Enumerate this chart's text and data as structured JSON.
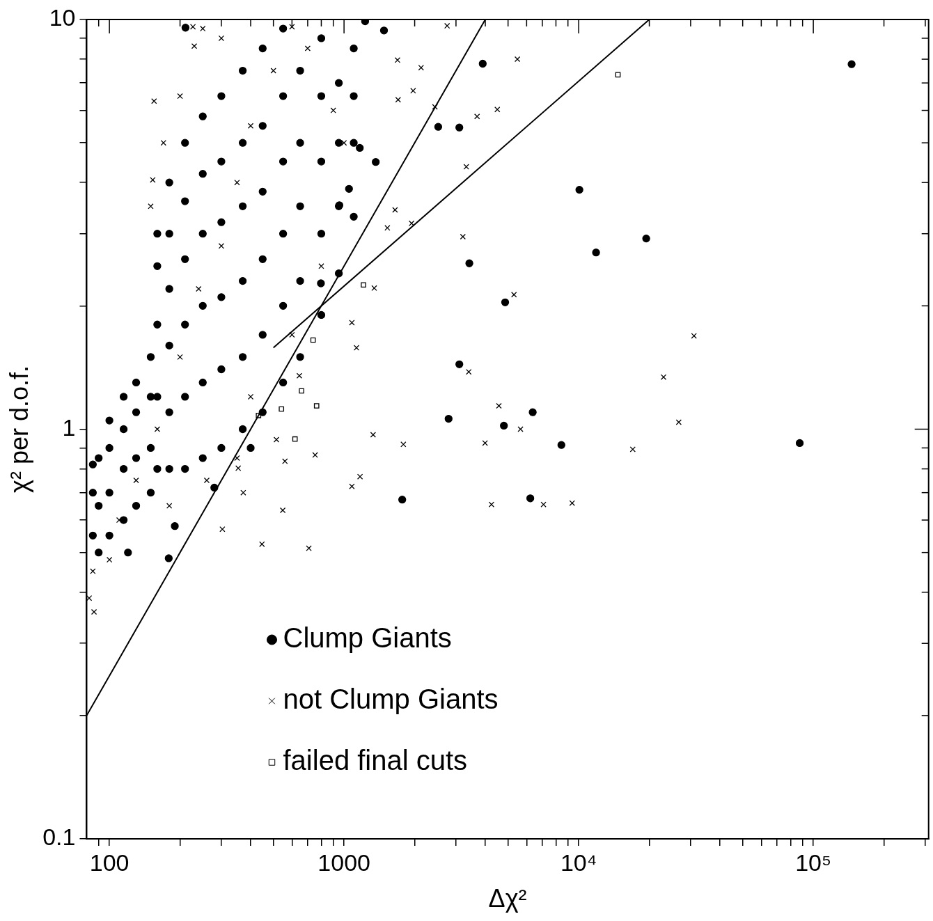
{
  "chart_data": {
    "type": "scatter",
    "xlabel": "Δχ²",
    "ylabel": "χ² per d.o.f.",
    "log": "xy",
    "grid": false,
    "legend": "bottom left",
    "xlim": [
      80,
      310000
    ],
    "ylim": [
      0.1,
      10
    ],
    "xticks": [
      {
        "value": 90,
        "label": null
      },
      100,
      {
        "value": 200,
        "label": null
      },
      {
        "value": 300,
        "label": null
      },
      {
        "value": 400,
        "label": null
      },
      {
        "value": 500,
        "label": null
      },
      {
        "value": 600,
        "label": null
      },
      {
        "value": 700,
        "label": null
      },
      {
        "value": 800,
        "label": null
      },
      {
        "value": 900,
        "label": null
      },
      1000,
      {
        "value": 2000,
        "label": null
      },
      {
        "value": 3000,
        "label": null
      },
      {
        "value": 4000,
        "label": null
      },
      {
        "value": 5000,
        "label": null
      },
      {
        "value": 6000,
        "label": null
      },
      {
        "value": 7000,
        "label": null
      },
      {
        "value": 8000,
        "label": null
      },
      {
        "value": 9000,
        "label": null
      },
      {
        "value": 10000,
        "label": "10⁴"
      },
      {
        "value": 20000,
        "label": null
      },
      {
        "value": 30000,
        "label": null
      },
      {
        "value": 40000,
        "label": null
      },
      {
        "value": 50000,
        "label": null
      },
      {
        "value": 60000,
        "label": null
      },
      {
        "value": 70000,
        "label": null
      },
      {
        "value": 80000,
        "label": null
      },
      {
        "value": 90000,
        "label": null
      },
      {
        "value": 100000,
        "label": "10⁵"
      },
      {
        "value": 200000,
        "label": null
      },
      {
        "value": 300000,
        "label": null
      }
    ],
    "yticks": [
      0.1,
      {
        "value": 0.2,
        "label": null
      },
      {
        "value": 0.3,
        "label": null
      },
      {
        "value": 0.4,
        "label": null
      },
      {
        "value": 0.5,
        "label": null
      },
      {
        "value": 0.6,
        "label": null
      },
      {
        "value": 0.7,
        "label": null
      },
      {
        "value": 0.8,
        "label": null
      },
      {
        "value": 0.9,
        "label": null
      },
      1,
      {
        "value": 2,
        "label": null
      },
      {
        "value": 3,
        "label": null
      },
      {
        "value": 4,
        "label": null
      },
      {
        "value": 5,
        "label": null
      },
      {
        "value": 6,
        "label": null
      },
      {
        "value": 7,
        "label": null
      },
      {
        "value": 8,
        "label": null
      },
      {
        "value": 9,
        "label": null
      },
      10
    ],
    "series": [
      {
        "name": "Clump Giants",
        "color": "#000000",
        "marker": "circle",
        "x": [
          145600,
          3900,
          2520,
          3100,
          10070,
          19400,
          11860,
          3420,
          4860,
          3100,
          2790,
          4800,
          6370,
          8440,
          87500,
          1770,
          6220,
          1480,
          1230,
          211,
          179,
          1365,
          1167,
          1050,
          955,
          797,
          85,
          85,
          85,
          90,
          90,
          90,
          100,
          100,
          100,
          100,
          115,
          115,
          115,
          115,
          130,
          130,
          130,
          130,
          150,
          150,
          150,
          150,
          160,
          160,
          160,
          160,
          160,
          180,
          180,
          180,
          180,
          180,
          180,
          210,
          210,
          210,
          210,
          210,
          210,
          250,
          250,
          250,
          250,
          250,
          250,
          300,
          300,
          300,
          300,
          300,
          300,
          370,
          370,
          370,
          370,
          370,
          370,
          450,
          450,
          450,
          450,
          450,
          450,
          550,
          550,
          550,
          550,
          550,
          550,
          650,
          650,
          650,
          650,
          650,
          800,
          800,
          800,
          800,
          800,
          950,
          950,
          950,
          950,
          1100,
          1100,
          1100,
          1100,
          120,
          190,
          280,
          400
        ],
        "values": [
          7.78,
          7.8,
          5.47,
          5.45,
          3.84,
          2.92,
          2.7,
          2.54,
          2.04,
          1.44,
          1.06,
          1.02,
          1.1,
          0.915,
          0.925,
          0.673,
          0.678,
          9.4,
          9.9,
          9.55,
          0.484,
          4.49,
          4.86,
          3.86,
          3.52,
          2.27,
          0.55,
          0.7,
          0.82,
          0.5,
          0.65,
          0.85,
          0.55,
          0.7,
          0.9,
          1.05,
          0.6,
          0.8,
          1.0,
          1.2,
          0.65,
          0.85,
          1.1,
          1.3,
          0.7,
          0.9,
          1.2,
          1.5,
          0.8,
          1.2,
          1.8,
          2.5,
          3.0,
          0.8,
          1.1,
          1.6,
          2.2,
          3.0,
          4.0,
          0.8,
          1.2,
          1.8,
          2.6,
          3.6,
          5.0,
          0.85,
          1.3,
          2.0,
          3.0,
          4.2,
          5.8,
          0.9,
          1.4,
          2.1,
          3.2,
          4.5,
          6.5,
          1.0,
          1.5,
          2.3,
          3.5,
          5.0,
          7.5,
          1.1,
          1.7,
          2.6,
          3.8,
          5.5,
          8.5,
          1.3,
          2.0,
          3.0,
          4.5,
          6.5,
          9.5,
          1.5,
          2.3,
          3.5,
          5.0,
          7.5,
          1.9,
          3.0,
          4.5,
          6.5,
          9.0,
          2.4,
          3.5,
          5.0,
          7.0,
          3.3,
          5.0,
          6.5,
          8.5,
          0.5,
          0.58,
          0.72,
          0.9
        ]
      },
      {
        "name": "not Clump Giants",
        "color": "#000000",
        "marker": "cross",
        "x": [
          227,
          230,
          155,
          153,
          2750,
          1690,
          2130,
          1970,
          1700,
          2440,
          3690,
          4500,
          5480,
          3320,
          1650,
          1530,
          1940,
          3210,
          1345,
          1080,
          1130,
          5300,
          31000,
          23000,
          3400,
          645,
          4570,
          5650,
          26700,
          17000,
          3990,
          1790,
          1330,
          515,
          560,
          753,
          1170,
          1080,
          4250,
          7080,
          9380,
          354,
          372,
          548,
          303,
          447,
          708,
          86,
          82,
          85,
          100,
          110,
          130,
          160,
          200,
          240,
          300,
          350,
          400,
          500,
          600,
          700,
          150,
          170,
          200,
          250,
          300,
          900,
          1000,
          400,
          600,
          800,
          180,
          260,
          350
        ],
        "values": [
          9.6,
          8.61,
          6.32,
          4.06,
          9.65,
          7.96,
          7.63,
          6.7,
          6.37,
          6.12,
          5.8,
          6.03,
          8.0,
          4.37,
          3.43,
          3.1,
          3.18,
          2.95,
          2.21,
          1.82,
          1.58,
          2.13,
          1.69,
          1.34,
          1.38,
          1.35,
          1.14,
          1.0,
          1.04,
          0.893,
          0.925,
          0.918,
          0.969,
          0.943,
          0.835,
          0.865,
          0.766,
          0.725,
          0.655,
          0.655,
          0.66,
          0.803,
          0.7,
          0.634,
          0.57,
          0.524,
          0.512,
          0.358,
          0.387,
          0.45,
          0.48,
          0.6,
          0.75,
          1.0,
          1.5,
          2.2,
          2.8,
          4.0,
          5.5,
          7.5,
          9.6,
          8.5,
          3.5,
          5.0,
          6.5,
          9.5,
          9.0,
          6.0,
          5.0,
          1.2,
          1.7,
          2.5,
          0.65,
          0.75,
          0.85
        ]
      },
      {
        "name": "failed final cuts",
        "color": "#000000",
        "marker": "square",
        "x": [
          14700,
          1210,
          738,
          659,
          541,
          764,
          432,
          618
        ],
        "values": [
          7.33,
          2.25,
          1.65,
          1.24,
          1.12,
          1.14,
          1.08,
          0.946
        ]
      },
      {
        "type": "line",
        "color": "#000000",
        "marker": "none",
        "line_style": "solid",
        "x": [
          80,
          4000
        ],
        "values": [
          0.2,
          10
        ]
      },
      {
        "type": "line",
        "color": "#000000",
        "marker": "none",
        "line_style": "solid",
        "x": [
          500,
          20000
        ],
        "values": [
          1.58,
          10
        ]
      }
    ]
  }
}
